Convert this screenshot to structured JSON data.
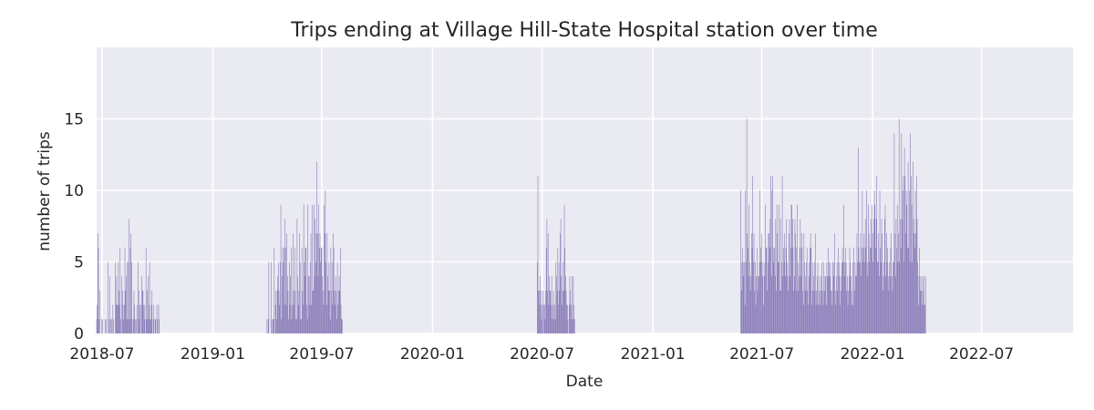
{
  "chart_data": {
    "type": "bar",
    "title": "Trips ending at Village Hill-State Hospital station over time",
    "xlabel": "Date",
    "ylabel": "number of trips",
    "x_ticks": [
      "2018-07",
      "2019-01",
      "2019-07",
      "2020-01",
      "2020-07",
      "2021-01",
      "2021-07",
      "2022-01",
      "2022-07"
    ],
    "y_ticks": [
      0,
      5,
      10,
      15
    ],
    "xlim": [
      "2018-06-22",
      "2022-11-30"
    ],
    "ylim": [
      0,
      20
    ],
    "grid": true,
    "bar_color": "#8172b3",
    "plot_background": "#eaeaf2",
    "series": [
      {
        "start_date": "2018-06-22",
        "values": [
          1,
          2,
          7,
          6,
          1,
          3,
          0,
          0,
          1,
          0,
          1,
          0,
          0,
          0,
          1,
          0,
          1,
          0,
          0,
          5,
          0,
          1,
          4,
          1,
          0,
          1,
          0,
          2,
          1,
          0,
          0,
          5,
          2,
          4,
          2,
          2,
          5,
          3,
          2,
          6,
          1,
          0,
          4,
          3,
          2,
          1,
          2,
          6,
          3,
          4,
          1,
          5,
          1,
          5,
          8,
          1,
          6,
          7,
          5,
          1,
          0,
          1,
          3,
          2,
          1,
          0,
          1,
          2,
          0,
          5,
          3,
          1,
          2,
          0,
          2,
          4,
          3,
          3,
          2,
          1,
          2,
          0,
          6,
          1,
          3,
          1,
          4,
          2,
          5,
          1,
          1,
          2,
          3,
          0,
          1,
          2,
          0,
          1,
          1,
          0,
          2,
          1,
          0,
          2,
          1,
          0,
          0,
          0
        ]
      },
      {
        "start_date": "2019-04-01",
        "values": [
          1,
          0,
          1,
          5,
          0,
          0,
          0,
          5,
          1,
          0,
          1,
          1,
          6,
          0,
          2,
          3,
          1,
          3,
          4,
          5,
          3,
          2,
          5,
          9,
          1,
          4,
          6,
          5,
          6,
          2,
          8,
          6,
          2,
          7,
          4,
          3,
          1,
          5,
          2,
          4,
          6,
          1,
          2,
          7,
          3,
          2,
          6,
          3,
          1,
          1,
          8,
          4,
          2,
          3,
          7,
          5,
          1,
          1,
          6,
          3,
          2,
          9,
          5,
          4,
          6,
          6,
          2,
          1,
          9,
          4,
          4,
          2,
          5,
          7,
          2,
          9,
          3,
          3,
          9,
          4,
          8,
          5,
          7,
          12,
          7,
          4,
          9,
          6,
          7,
          5,
          6,
          6,
          4,
          3,
          2,
          9,
          7,
          10,
          5,
          2,
          7,
          4,
          3,
          5,
          3,
          1,
          6,
          3,
          5,
          2,
          7,
          6,
          3,
          2,
          4,
          3,
          1,
          5,
          2,
          3,
          4,
          3,
          6,
          2,
          1,
          1
        ]
      },
      {
        "start_date": "2020-06-23",
        "values": [
          5,
          11,
          3,
          3,
          2,
          4,
          3,
          1,
          2,
          3,
          0,
          2,
          2,
          1,
          3,
          6,
          8,
          3,
          7,
          2,
          4,
          3,
          3,
          2,
          4,
          1,
          2,
          3,
          1,
          2,
          1,
          5,
          4,
          3,
          6,
          2,
          5,
          3,
          7,
          8,
          4,
          2,
          3,
          5,
          3,
          9,
          6,
          4,
          3,
          2,
          2,
          1,
          0,
          2,
          4,
          3,
          2,
          1,
          4,
          1,
          4,
          2,
          1
        ]
      },
      {
        "start_date": "2021-05-27",
        "values": [
          10,
          3,
          5,
          6,
          5,
          4,
          5,
          2,
          10,
          5,
          15,
          7,
          6,
          4,
          9,
          5,
          3,
          4,
          7,
          6,
          11,
          5,
          7,
          3,
          5,
          2,
          4,
          6,
          3,
          4,
          4,
          5,
          10,
          6,
          5,
          7,
          4,
          5,
          2,
          4,
          5,
          9,
          6,
          6,
          3,
          5,
          7,
          7,
          6,
          8,
          11,
          4,
          10,
          11,
          5,
          6,
          6,
          4,
          8,
          3,
          9,
          7,
          5,
          5,
          9,
          3,
          8,
          3,
          5,
          11,
          4,
          6,
          5,
          7,
          4,
          6,
          8,
          5,
          4,
          3,
          7,
          8,
          4,
          6,
          9,
          9,
          8,
          6,
          3,
          4,
          8,
          7,
          6,
          3,
          9,
          5,
          3,
          4,
          6,
          8,
          4,
          7,
          6,
          3,
          2,
          7,
          5,
          3,
          4,
          5,
          6,
          3,
          2,
          4,
          5,
          6,
          7,
          6,
          2,
          3,
          5,
          4,
          3,
          5,
          7,
          2,
          3,
          4,
          5,
          2,
          3,
          4,
          2,
          3,
          4,
          5,
          3,
          2,
          5,
          3,
          4,
          4,
          2,
          5,
          4,
          6,
          4,
          5,
          4,
          5,
          3,
          3,
          2,
          5,
          4,
          5,
          7,
          3,
          2,
          4,
          5,
          3,
          6,
          4,
          5,
          2,
          3,
          4,
          5,
          6,
          5,
          9,
          4,
          5,
          6,
          5,
          3,
          4,
          2,
          3,
          4,
          6,
          5,
          4,
          3,
          2,
          5,
          2,
          6,
          3,
          5,
          4,
          4,
          7,
          5,
          13,
          6,
          5,
          5,
          7,
          4,
          6,
          10,
          5,
          6,
          7,
          5,
          8,
          6,
          10,
          5,
          4,
          9,
          7,
          5,
          6,
          8,
          6,
          9,
          7,
          5,
          8,
          10,
          9,
          6,
          8,
          11,
          5,
          5,
          7,
          4,
          10,
          6,
          5,
          8,
          7,
          3,
          4,
          5,
          8,
          9,
          4,
          7,
          5,
          6,
          4,
          3,
          5,
          4,
          6,
          7,
          4,
          3,
          5,
          5,
          14,
          7,
          4,
          8,
          6,
          9,
          5,
          7,
          15,
          5,
          8,
          6,
          14,
          8,
          10,
          11,
          5,
          13,
          11,
          7,
          10,
          9,
          6,
          12,
          6,
          10,
          5,
          14,
          11,
          9,
          5,
          12,
          8,
          7,
          6,
          10,
          7,
          11,
          8,
          5,
          2,
          4,
          6,
          3,
          4,
          3,
          2,
          4,
          3,
          4,
          2,
          2,
          4
        ]
      }
    ]
  }
}
